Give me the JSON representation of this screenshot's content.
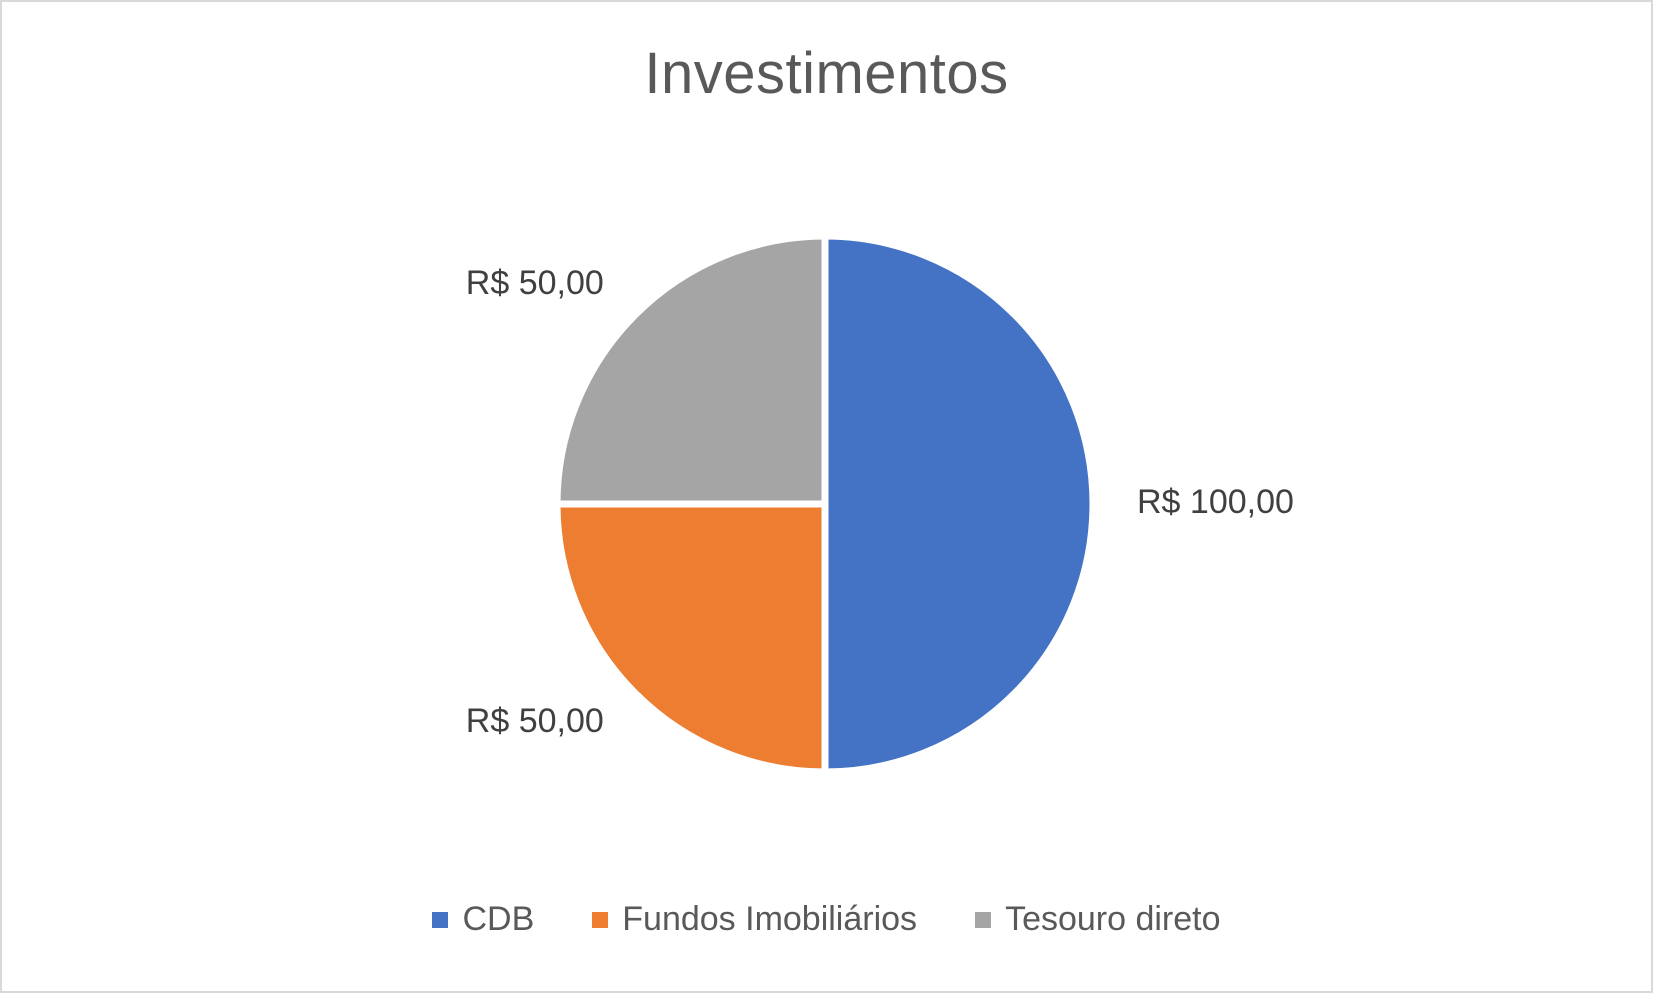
{
  "chart_data": {
    "type": "pie",
    "title": "Investimentos",
    "categories": [
      "CDB",
      "Fundos Imobiliários",
      "Tesouro direto"
    ],
    "values": [
      100,
      50,
      50
    ],
    "data_labels": [
      "R$ 100,00",
      "R$ 50,00",
      "R$ 50,00"
    ],
    "colors": [
      "#4472C4",
      "#ED7D31",
      "#A5A5A5"
    ],
    "start_angle_deg": 0,
    "direction": "clockwise",
    "legend_position": "bottom"
  }
}
